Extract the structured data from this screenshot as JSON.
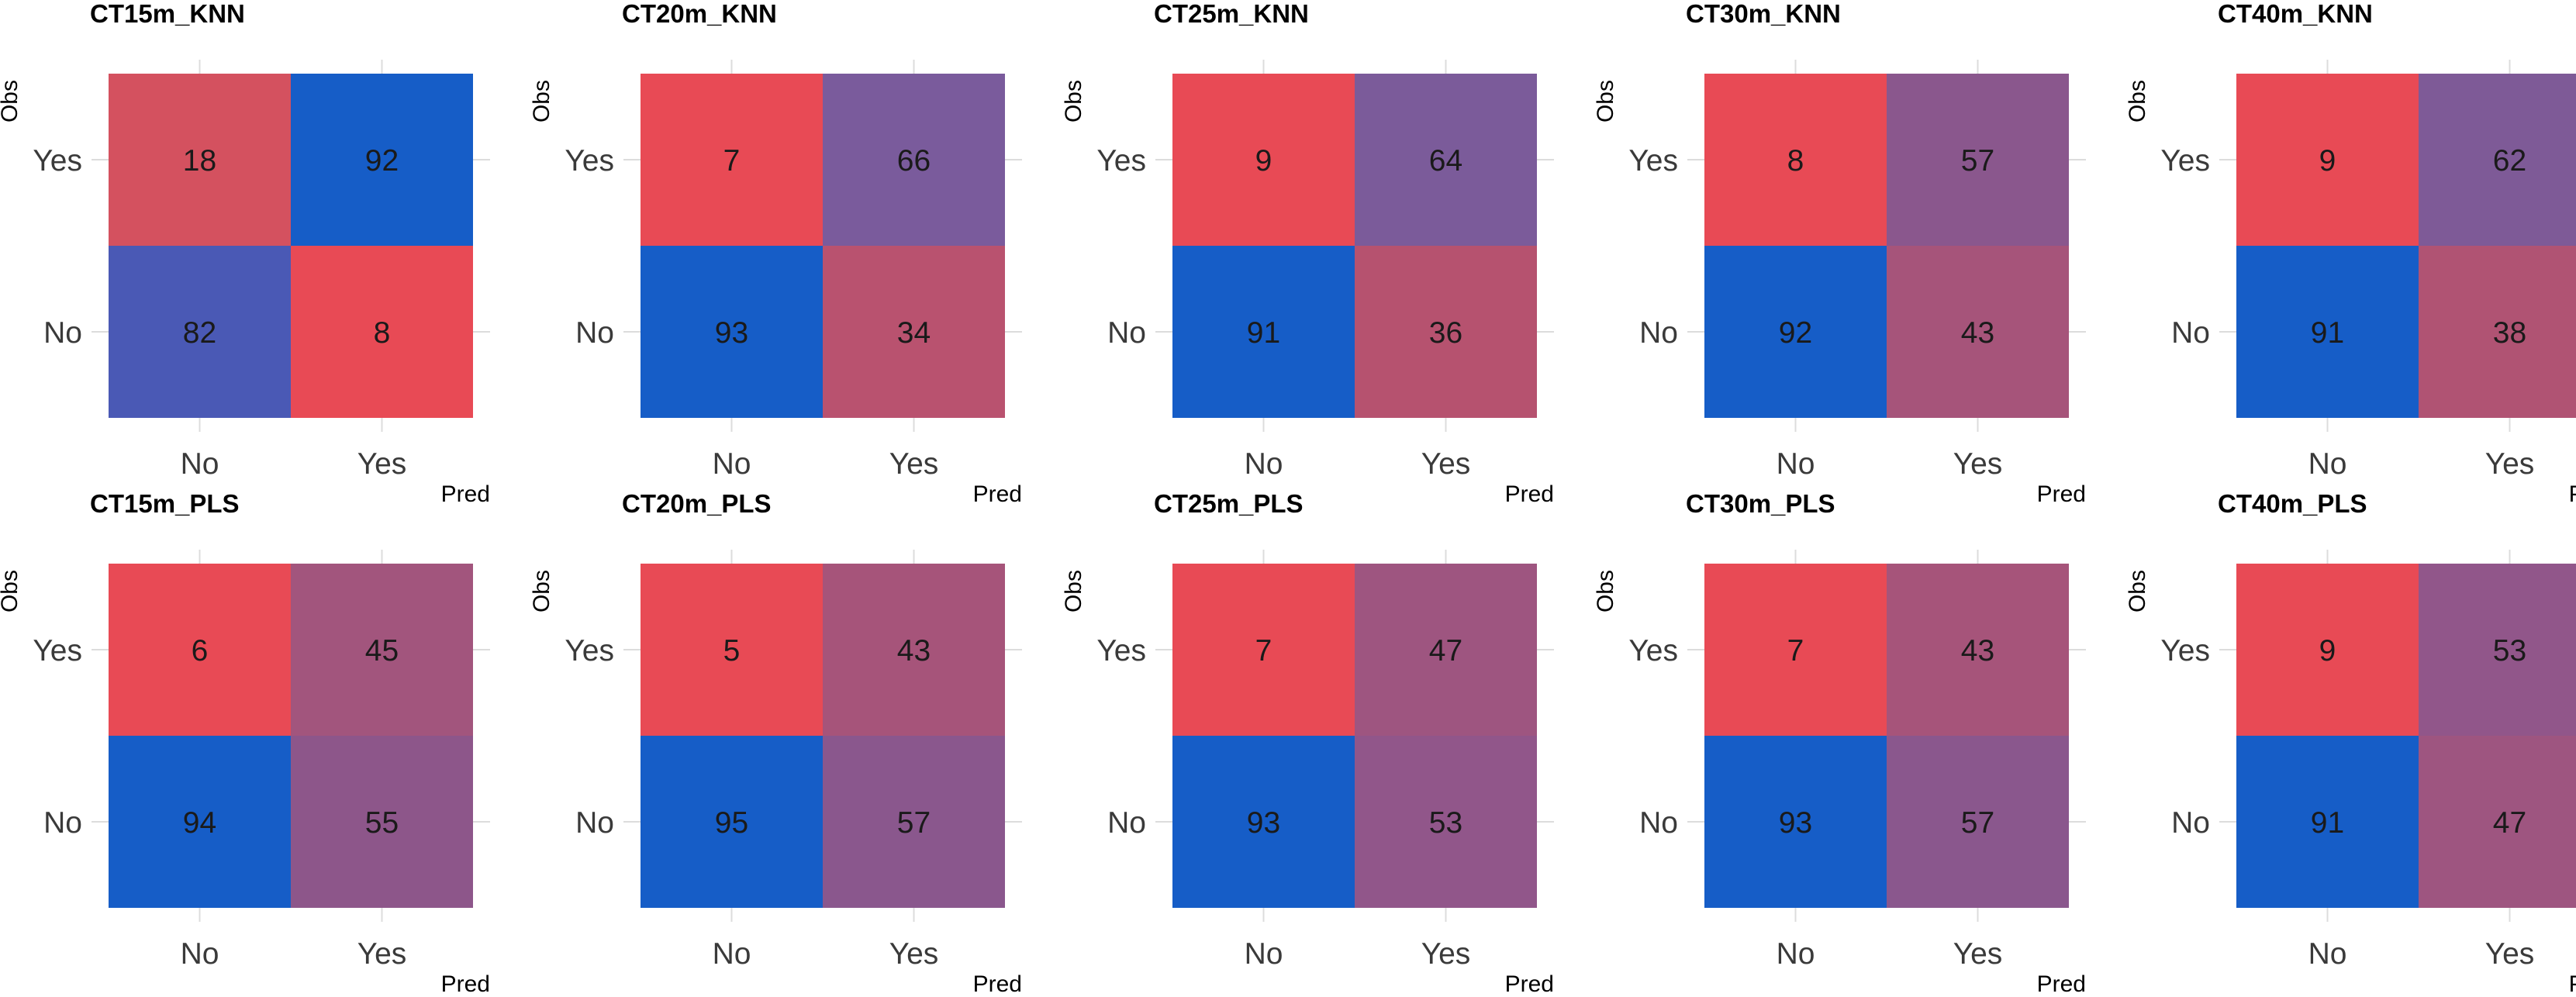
{
  "chart_data": [
    {
      "type": "heatmap",
      "title": "CT15m_KNN",
      "xlabel": "Pred",
      "ylabel": "Obs",
      "x_categories": [
        "No",
        "Yes"
      ],
      "y_categories": [
        "Yes",
        "No"
      ],
      "cells": [
        [
          {
            "value": 18,
            "color": "#d4515f"
          },
          {
            "value": 92,
            "color": "#165dc7"
          }
        ],
        [
          {
            "value": 82,
            "color": "#4a59b5"
          },
          {
            "value": 8,
            "color": "#e84a55"
          }
        ]
      ]
    },
    {
      "type": "heatmap",
      "title": "CT20m_KNN",
      "xlabel": "Pred",
      "ylabel": "Obs",
      "x_categories": [
        "No",
        "Yes"
      ],
      "y_categories": [
        "Yes",
        "No"
      ],
      "cells": [
        [
          {
            "value": 7,
            "color": "#e84a55"
          },
          {
            "value": 66,
            "color": "#7a5b9c"
          }
        ],
        [
          {
            "value": 93,
            "color": "#165dc7"
          },
          {
            "value": 34,
            "color": "#b9526f"
          }
        ]
      ]
    },
    {
      "type": "heatmap",
      "title": "CT25m_KNN",
      "xlabel": "Pred",
      "ylabel": "Obs",
      "x_categories": [
        "No",
        "Yes"
      ],
      "y_categories": [
        "Yes",
        "No"
      ],
      "cells": [
        [
          {
            "value": 9,
            "color": "#e84a55"
          },
          {
            "value": 64,
            "color": "#7b5b9a"
          }
        ],
        [
          {
            "value": 91,
            "color": "#165dc7"
          },
          {
            "value": 36,
            "color": "#b6526f"
          }
        ]
      ]
    },
    {
      "type": "heatmap",
      "title": "CT30m_KNN",
      "xlabel": "Pred",
      "ylabel": "Obs",
      "x_categories": [
        "No",
        "Yes"
      ],
      "y_categories": [
        "Yes",
        "No"
      ],
      "cells": [
        [
          {
            "value": 8,
            "color": "#e84a55"
          },
          {
            "value": 57,
            "color": "#8a578d"
          }
        ],
        [
          {
            "value": 92,
            "color": "#165dc7"
          },
          {
            "value": 43,
            "color": "#a6547a"
          }
        ]
      ]
    },
    {
      "type": "heatmap",
      "title": "CT40m_KNN",
      "xlabel": "Pred",
      "ylabel": "Obs",
      "x_categories": [
        "No",
        "Yes"
      ],
      "y_categories": [
        "Yes",
        "No"
      ],
      "cells": [
        [
          {
            "value": 9,
            "color": "#e84a55"
          },
          {
            "value": 62,
            "color": "#7e5a97"
          }
        ],
        [
          {
            "value": 91,
            "color": "#165dc7"
          },
          {
            "value": 38,
            "color": "#b05373"
          }
        ]
      ]
    },
    {
      "type": "heatmap",
      "title": "CT15m_PLS",
      "xlabel": "Pred",
      "ylabel": "Obs",
      "x_categories": [
        "No",
        "Yes"
      ],
      "y_categories": [
        "Yes",
        "No"
      ],
      "cells": [
        [
          {
            "value": 6,
            "color": "#e84a55"
          },
          {
            "value": 45,
            "color": "#a2557d"
          }
        ],
        [
          {
            "value": 94,
            "color": "#165dc7"
          },
          {
            "value": 55,
            "color": "#8d568a"
          }
        ]
      ]
    },
    {
      "type": "heatmap",
      "title": "CT20m_PLS",
      "xlabel": "Pred",
      "ylabel": "Obs",
      "x_categories": [
        "No",
        "Yes"
      ],
      "y_categories": [
        "Yes",
        "No"
      ],
      "cells": [
        [
          {
            "value": 5,
            "color": "#e84a55"
          },
          {
            "value": 43,
            "color": "#a6547a"
          }
        ],
        [
          {
            "value": 95,
            "color": "#165dc7"
          },
          {
            "value": 57,
            "color": "#8a578d"
          }
        ]
      ]
    },
    {
      "type": "heatmap",
      "title": "CT25m_PLS",
      "xlabel": "Pred",
      "ylabel": "Obs",
      "x_categories": [
        "No",
        "Yes"
      ],
      "y_categories": [
        "Yes",
        "No"
      ],
      "cells": [
        [
          {
            "value": 7,
            "color": "#e84a55"
          },
          {
            "value": 47,
            "color": "#9e5580"
          }
        ],
        [
          {
            "value": 93,
            "color": "#165dc7"
          },
          {
            "value": 53,
            "color": "#91568a"
          }
        ]
      ]
    },
    {
      "type": "heatmap",
      "title": "CT30m_PLS",
      "xlabel": "Pred",
      "ylabel": "Obs",
      "x_categories": [
        "No",
        "Yes"
      ],
      "y_categories": [
        "Yes",
        "No"
      ],
      "cells": [
        [
          {
            "value": 7,
            "color": "#e84a55"
          },
          {
            "value": 43,
            "color": "#a6547a"
          }
        ],
        [
          {
            "value": 93,
            "color": "#165dc7"
          },
          {
            "value": 57,
            "color": "#8a578d"
          }
        ]
      ]
    },
    {
      "type": "heatmap",
      "title": "CT40m_PLS",
      "xlabel": "Pred",
      "ylabel": "Obs",
      "x_categories": [
        "No",
        "Yes"
      ],
      "y_categories": [
        "Yes",
        "No"
      ],
      "cells": [
        [
          {
            "value": 9,
            "color": "#e84a55"
          },
          {
            "value": 53,
            "color": "#91568a"
          }
        ],
        [
          {
            "value": 91,
            "color": "#165dc7"
          },
          {
            "value": 47,
            "color": "#9e5580"
          }
        ]
      ]
    }
  ]
}
